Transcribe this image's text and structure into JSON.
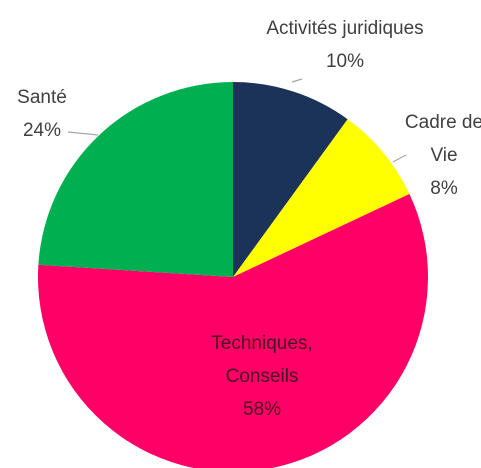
{
  "chart_data": {
    "type": "pie",
    "categories": [
      "Activités juridiques",
      "Cadre de Vie",
      "Techniques, Conseils",
      "Santé"
    ],
    "values": [
      10,
      8,
      58,
      24
    ],
    "value_labels": [
      "10%",
      "8%",
      "58%",
      "24%"
    ],
    "colors": [
      "#1b3358",
      "#ffff00",
      "#ff0066",
      "#00b050"
    ]
  }
}
